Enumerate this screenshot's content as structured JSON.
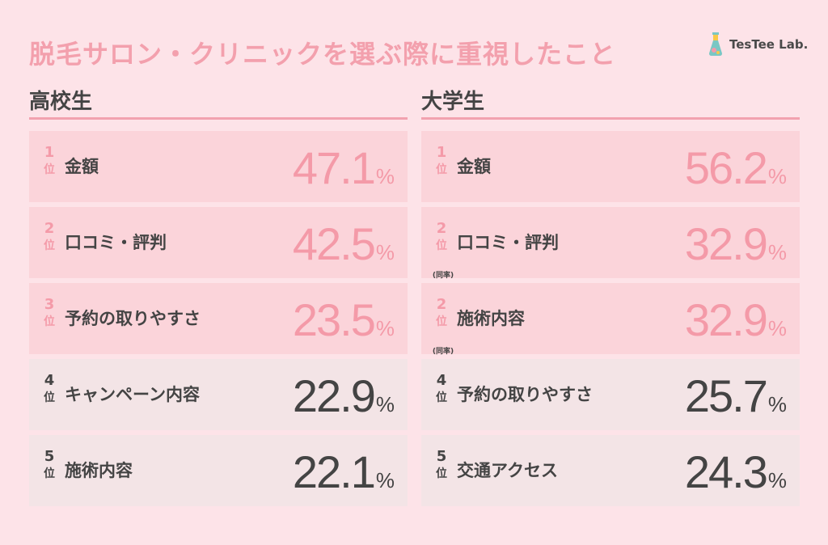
{
  "title": "脱毛サロン・クリニックを選ぶ際に重視したこと",
  "logo": {
    "text": "TesTee Lab."
  },
  "rank_unit": "位",
  "percent_unit": "%",
  "colors": {
    "highlight": "#f49aa8",
    "highlight_bg": "#fbd4da",
    "normal_bg": "#f3e4e6",
    "text": "#444444",
    "background": "#fde3e8"
  },
  "chart_data": [
    {
      "type": "table",
      "title": "高校生",
      "categories": [
        "金額",
        "口コミ・評判",
        "予約の取りやすさ",
        "キャンペーン内容",
        "施術内容"
      ],
      "values": [
        47.1,
        42.5,
        23.5,
        22.9,
        22.1
      ],
      "ranks": [
        "1",
        "2",
        "3",
        "4",
        "5"
      ],
      "notes": [
        "",
        "",
        "",
        "",
        ""
      ]
    },
    {
      "type": "table",
      "title": "大学生",
      "categories": [
        "金額",
        "口コミ・評判",
        "施術内容",
        "予約の取りやすさ",
        "交通アクセス"
      ],
      "values": [
        56.2,
        32.9,
        32.9,
        25.7,
        24.3
      ],
      "ranks": [
        "1",
        "2",
        "2",
        "4",
        "5"
      ],
      "notes": [
        "",
        "(同率)",
        "(同率)",
        "",
        ""
      ]
    }
  ]
}
